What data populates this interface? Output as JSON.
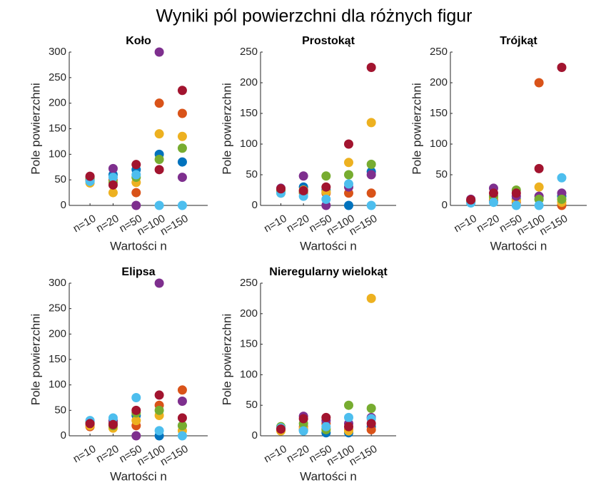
{
  "title": "Wyniki pól powierzchni dla różnych figur",
  "chart_data": [
    {
      "type": "scatter",
      "title": "Koło",
      "xlabel": "Wartości n",
      "ylabel": "Pole powierzchni",
      "categories": [
        "n=10",
        "n=20",
        "n=50",
        "n=100",
        "n=150"
      ],
      "ylim": [
        0,
        300
      ],
      "yticks": [
        0,
        50,
        100,
        150,
        200,
        250,
        300
      ],
      "series": [
        {
          "color": "#0072BD",
          "values": [
            50,
            60,
            70,
            100,
            85
          ]
        },
        {
          "color": "#D95319",
          "values": [
            48,
            50,
            25,
            200,
            180
          ]
        },
        {
          "color": "#EDB120",
          "values": [
            44,
            25,
            45,
            140,
            135
          ]
        },
        {
          "color": "#7E2F8E",
          "values": [
            55,
            72,
            0,
            300,
            55
          ]
        },
        {
          "color": "#77AC30",
          "values": [
            52,
            45,
            55,
            90,
            112
          ]
        },
        {
          "color": "#4DBEEE",
          "values": [
            47,
            55,
            60,
            0,
            0
          ]
        },
        {
          "color": "#A2142F",
          "values": [
            57,
            40,
            80,
            70,
            225
          ]
        }
      ]
    },
    {
      "type": "scatter",
      "title": "Prostokąt",
      "xlabel": "Wartości n",
      "ylabel": "Pole powierzchni",
      "categories": [
        "n=10",
        "n=20",
        "n=50",
        "n=100",
        "n=150"
      ],
      "ylim": [
        0,
        250
      ],
      "yticks": [
        0,
        50,
        100,
        150,
        200,
        250
      ],
      "series": [
        {
          "color": "#0072BD",
          "values": [
            22,
            30,
            25,
            0,
            55
          ]
        },
        {
          "color": "#D95319",
          "values": [
            25,
            20,
            20,
            20,
            20
          ]
        },
        {
          "color": "#EDB120",
          "values": [
            20,
            25,
            22,
            70,
            135
          ]
        },
        {
          "color": "#7E2F8E",
          "values": [
            28,
            48,
            0,
            30,
            50
          ]
        },
        {
          "color": "#77AC30",
          "values": [
            24,
            22,
            48,
            50,
            67
          ]
        },
        {
          "color": "#4DBEEE",
          "values": [
            20,
            15,
            10,
            35,
            0
          ]
        },
        {
          "color": "#A2142F",
          "values": [
            27,
            24,
            30,
            100,
            225
          ]
        }
      ]
    },
    {
      "type": "scatter",
      "title": "Trójkąt",
      "xlabel": "Wartości n",
      "ylabel": "Pole powierzchni",
      "categories": [
        "n=10",
        "n=20",
        "n=50",
        "n=100",
        "n=150"
      ],
      "ylim": [
        0,
        250
      ],
      "yticks": [
        0,
        50,
        100,
        150,
        200,
        250
      ],
      "series": [
        {
          "color": "#0072BD",
          "values": [
            8,
            10,
            10,
            10,
            15
          ]
        },
        {
          "color": "#D95319",
          "values": [
            6,
            8,
            5,
            200,
            0
          ]
        },
        {
          "color": "#EDB120",
          "values": [
            5,
            12,
            8,
            30,
            5
          ]
        },
        {
          "color": "#7E2F8E",
          "values": [
            10,
            28,
            15,
            15,
            20
          ]
        },
        {
          "color": "#77AC30",
          "values": [
            7,
            15,
            25,
            10,
            10
          ]
        },
        {
          "color": "#4DBEEE",
          "values": [
            4,
            5,
            0,
            0,
            45
          ]
        },
        {
          "color": "#A2142F",
          "values": [
            9,
            20,
            20,
            60,
            225
          ]
        }
      ]
    },
    {
      "type": "scatter",
      "title": "Elipsa",
      "xlabel": "Wartości n",
      "ylabel": "Pole powierzchni",
      "categories": [
        "n=10",
        "n=20",
        "n=50",
        "n=100",
        "n=150"
      ],
      "ylim": [
        0,
        300
      ],
      "yticks": [
        0,
        50,
        100,
        150,
        200,
        250,
        300
      ],
      "series": [
        {
          "color": "#0072BD",
          "values": [
            22,
            25,
            40,
            0,
            20
          ]
        },
        {
          "color": "#D95319",
          "values": [
            18,
            28,
            20,
            60,
            90
          ]
        },
        {
          "color": "#EDB120",
          "values": [
            20,
            15,
            30,
            40,
            10
          ]
        },
        {
          "color": "#7E2F8E",
          "values": [
            25,
            30,
            0,
            300,
            68
          ]
        },
        {
          "color": "#77AC30",
          "values": [
            27,
            20,
            45,
            50,
            20
          ]
        },
        {
          "color": "#4DBEEE",
          "values": [
            30,
            35,
            75,
            10,
            0
          ]
        },
        {
          "color": "#A2142F",
          "values": [
            24,
            22,
            50,
            80,
            35
          ]
        }
      ]
    },
    {
      "type": "scatter",
      "title": "Nieregularny wielokąt",
      "xlabel": "Wartości n",
      "ylabel": "Pole powierzchni",
      "categories": [
        "n=10",
        "n=20",
        "n=50",
        "n=100",
        "n=150"
      ],
      "ylim": [
        0,
        250
      ],
      "yticks": [
        0,
        50,
        100,
        150,
        200,
        250
      ],
      "series": [
        {
          "color": "#0072BD",
          "values": [
            12,
            10,
            5,
            5,
            15
          ]
        },
        {
          "color": "#D95319",
          "values": [
            10,
            15,
            20,
            10,
            10
          ]
        },
        {
          "color": "#EDB120",
          "values": [
            8,
            12,
            12,
            8,
            225
          ]
        },
        {
          "color": "#7E2F8E",
          "values": [
            14,
            32,
            25,
            20,
            30
          ]
        },
        {
          "color": "#77AC30",
          "values": [
            15,
            20,
            10,
            50,
            45
          ]
        },
        {
          "color": "#4DBEEE",
          "values": [
            13,
            8,
            15,
            30,
            28
          ]
        },
        {
          "color": "#A2142F",
          "values": [
            11,
            28,
            30,
            15,
            20
          ]
        }
      ]
    }
  ]
}
